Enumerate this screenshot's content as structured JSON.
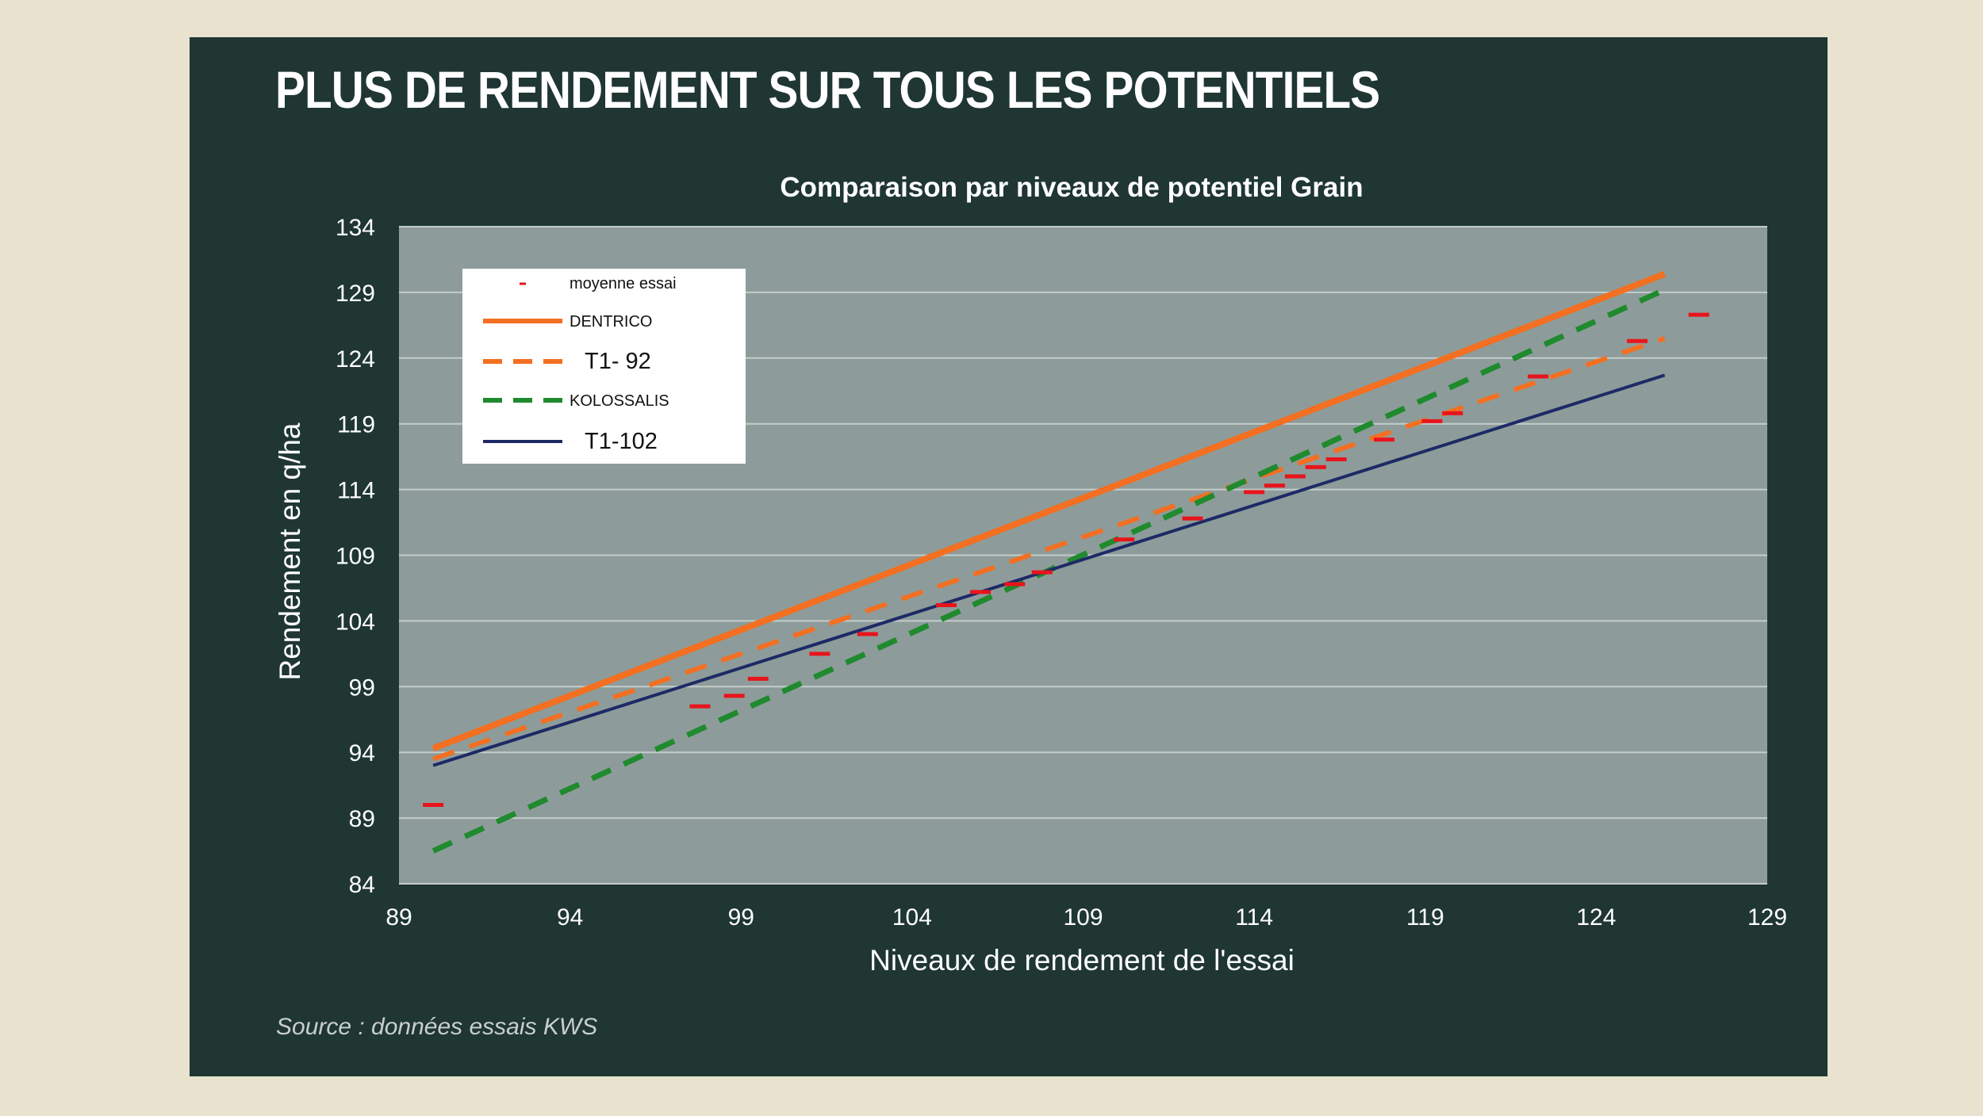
{
  "main_title": "PLUS DE RENDEMENT SUR TOUS LES POTENTIELS",
  "source": "Source : données essais KWS",
  "colors": {
    "background": "#e8e2cf",
    "panel": "#1f3633",
    "plot": "#8d9c9a",
    "grid": "#c4cccb",
    "moyenne_essai": "#e8141c",
    "dentrico": "#f36f21",
    "t1_92": "#f36f21",
    "kolossalis": "#1f8a2e",
    "t1_102": "#1d2a66"
  },
  "chart_data": {
    "type": "line",
    "title": "Comparaison par niveaux de potentiel Grain",
    "xlabel": "Niveaux de rendement de l'essai",
    "ylabel": "Rendement en q/ha",
    "xlim": [
      89,
      129
    ],
    "ylim": [
      84,
      134
    ],
    "xticks": [
      "89",
      "94",
      "99",
      "104",
      "109",
      "114",
      "119",
      "124",
      "129"
    ],
    "yticks": [
      "84",
      "89",
      "94",
      "99",
      "104",
      "109",
      "114",
      "119",
      "124",
      "129",
      "134"
    ],
    "grid": true,
    "legend_position": "top-left",
    "series": [
      {
        "name": "moyenne essai",
        "style": "marker-dash",
        "x": [
          90,
          97.8,
          98.8,
          99.5,
          101.3,
          102.7,
          105,
          106,
          107,
          107.8,
          110.2,
          112.2,
          114,
          114.6,
          115.2,
          115.8,
          116.4,
          117.8,
          119.2,
          119.8,
          122.3,
          125.2,
          127
        ],
        "y": [
          90,
          97.5,
          98.3,
          99.6,
          101.5,
          103,
          105.2,
          106.2,
          106.8,
          107.7,
          110.2,
          111.8,
          113.8,
          114.3,
          115,
          115.7,
          116.3,
          117.8,
          119.2,
          119.8,
          122.6,
          125.3,
          127.3
        ]
      },
      {
        "name": "DENTRICO",
        "style": "solid",
        "x": [
          90,
          126
        ],
        "y": [
          94.3,
          130.4
        ]
      },
      {
        "name": "T1- 92",
        "style": "dashed",
        "x": [
          90,
          126
        ],
        "y": [
          93.5,
          125.5
        ]
      },
      {
        "name": "KOLOSSALIS",
        "style": "dashed",
        "x": [
          90,
          126
        ],
        "y": [
          86.5,
          129.2
        ]
      },
      {
        "name": "T1-102",
        "style": "solid",
        "x": [
          90,
          126
        ],
        "y": [
          93,
          122.7
        ]
      }
    ]
  }
}
